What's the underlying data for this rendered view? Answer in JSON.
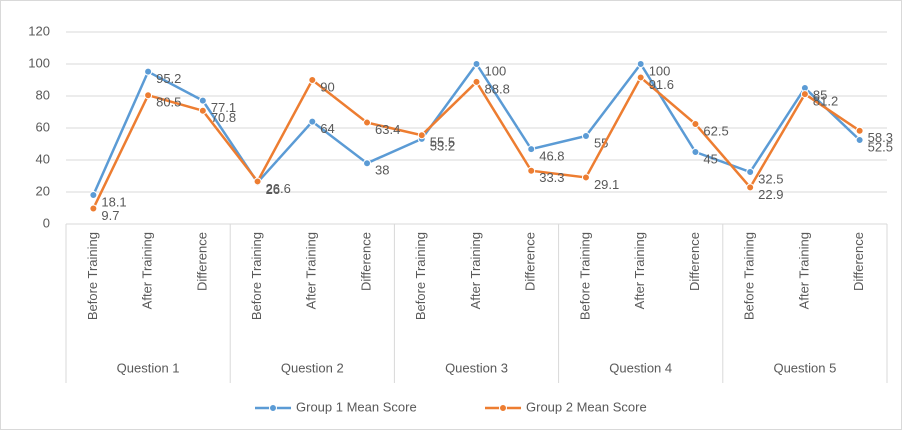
{
  "chart_data": {
    "type": "line",
    "categories": [
      "Before Training",
      "After Training",
      "Difference",
      "Before Training",
      "After Training",
      "Difference",
      "Before Training",
      "After Training",
      "Difference",
      "Before Training",
      "After Training",
      "Difference",
      "Before Training",
      "After Training",
      "Difference"
    ],
    "category_groups": [
      "Question 1",
      "Question 2",
      "Question 3",
      "Question 4",
      "Question 5"
    ],
    "series": [
      {
        "name": "Group 1 Mean Score",
        "color": "#5b9bd5",
        "values": [
          18.1,
          95.2,
          77.1,
          26,
          64,
          38,
          53.2,
          100,
          46.8,
          55,
          100,
          45,
          32.5,
          85,
          52.5
        ]
      },
      {
        "name": "Group 2 Mean Score",
        "color": "#ed7d31",
        "values": [
          9.7,
          80.5,
          70.8,
          26.6,
          90,
          63.4,
          55.5,
          88.8,
          33.3,
          29.1,
          91.6,
          62.5,
          22.9,
          81.2,
          58.3
        ]
      }
    ],
    "ylim": [
      0,
      120
    ],
    "yticks": [
      0,
      20,
      40,
      60,
      80,
      100,
      120
    ],
    "grid": true,
    "legend": "bottom"
  }
}
